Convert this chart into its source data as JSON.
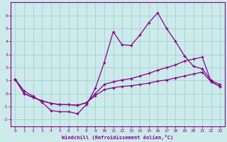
{
  "x": [
    0,
    1,
    2,
    3,
    4,
    5,
    6,
    7,
    8,
    9,
    10,
    11,
    12,
    13,
    14,
    15,
    16,
    17,
    18,
    19,
    20,
    21,
    22,
    23
  ],
  "line_main": [
    1.1,
    0.2,
    -0.2,
    -0.65,
    -1.3,
    -1.4,
    -1.4,
    -1.55,
    -0.85,
    0.4,
    2.4,
    4.75,
    3.75,
    3.7,
    4.5,
    5.45,
    6.2,
    5.0,
    4.0,
    2.9,
    2.1,
    1.9,
    1.0,
    0.7
  ],
  "line_upper": [
    1.1,
    0.0,
    -0.3,
    -0.55,
    -0.75,
    -0.85,
    -0.85,
    -0.9,
    -0.7,
    0.0,
    0.7,
    0.9,
    1.05,
    1.15,
    1.35,
    1.55,
    1.8,
    2.0,
    2.2,
    2.5,
    2.65,
    2.8,
    0.9,
    0.55
  ],
  "line_lower": [
    1.1,
    0.0,
    -0.3,
    -0.55,
    -0.75,
    -0.85,
    -0.85,
    -0.9,
    -0.7,
    -0.15,
    0.3,
    0.45,
    0.55,
    0.6,
    0.7,
    0.8,
    0.95,
    1.05,
    1.2,
    1.35,
    1.5,
    1.65,
    0.9,
    0.55
  ],
  "color": "#880088",
  "bg_color": "#cceaea",
  "grid_color": "#99cccc",
  "xlabel": "Windchill (Refroidissement éolien,°C)",
  "ylim": [
    -2.5,
    7.0
  ],
  "xlim": [
    -0.5,
    23.5
  ],
  "yticks": [
    -2,
    -1,
    0,
    1,
    2,
    3,
    4,
    5,
    6
  ],
  "xticks": [
    0,
    1,
    2,
    3,
    4,
    5,
    6,
    7,
    8,
    9,
    10,
    11,
    12,
    13,
    14,
    15,
    16,
    17,
    18,
    19,
    20,
    21,
    22,
    23
  ]
}
